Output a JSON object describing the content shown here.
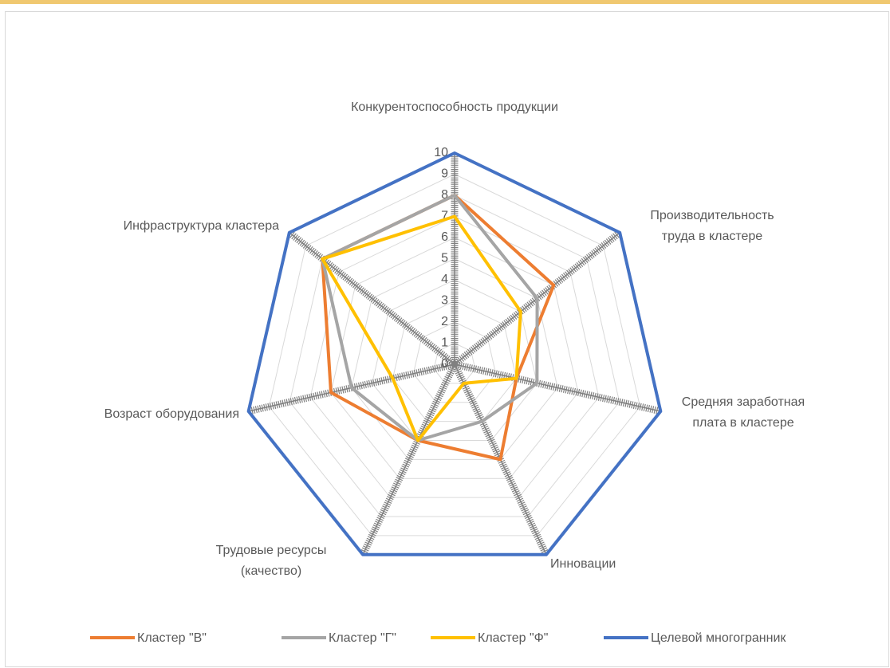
{
  "chart_data": {
    "type": "radar",
    "categories": [
      "Конкурентоспособность продукции",
      "Производительность труда в кластере",
      "Средняя заработная плата в кластере",
      "Инновации",
      "Трудовые ресурсы (качество)",
      "Возраст оборудования",
      "Инфраструктура кластера"
    ],
    "series": [
      {
        "name": "Кластер \"В\"",
        "color": "#ed7d31",
        "values": [
          8,
          6,
          3,
          5,
          4,
          6,
          8
        ]
      },
      {
        "name": "Кластер \"Г\"",
        "color": "#a5a5a5",
        "values": [
          8,
          5,
          4,
          3,
          4,
          5,
          8
        ]
      },
      {
        "name": "Кластер \"Ф\"",
        "color": "#ffc000",
        "values": [
          7,
          4,
          3,
          1,
          4,
          3,
          8
        ]
      },
      {
        "name": "Целевой многогранник",
        "color": "#4472c4",
        "values": [
          10,
          10,
          10,
          10,
          10,
          10,
          10
        ]
      }
    ],
    "ylim": [
      0,
      10
    ],
    "yticks": [
      0,
      1,
      2,
      3,
      4,
      5,
      6,
      7,
      8,
      9,
      10
    ],
    "grid": true,
    "legend": "bottom"
  }
}
